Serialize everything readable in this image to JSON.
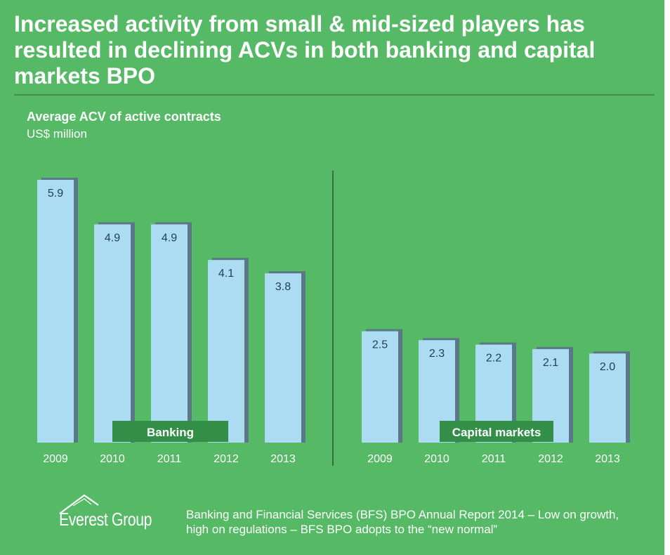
{
  "headline": "Increased activity from small & mid-sized players has resulted in declining ACVs in both banking and capital markets BPO",
  "chart_data": {
    "type": "bar",
    "title": "Average ACV of active contracts",
    "unit": "US$ million",
    "groups": [
      {
        "name": "Banking",
        "categories": [
          "2009",
          "2010",
          "2011",
          "2012",
          "2013"
        ],
        "values": [
          5.9,
          4.9,
          4.9,
          4.1,
          3.8
        ],
        "labels": [
          "5.9",
          "4.9",
          "4.9",
          "4.1",
          "3.8"
        ]
      },
      {
        "name": "Capital markets",
        "categories": [
          "2009",
          "2010",
          "2011",
          "2012",
          "2013"
        ],
        "values": [
          2.5,
          2.3,
          2.2,
          2.1,
          2.0
        ],
        "labels": [
          "2.5",
          "2.3",
          "2.2",
          "2.1",
          "2.0"
        ]
      }
    ],
    "ylim": [
      0,
      5.9
    ],
    "colors": {
      "bar": "#acdcf1",
      "bar_shadow": "#5b7888",
      "group_label_bg": "#338f47",
      "value_label": "#1f3f50",
      "divider": "#3a6d46"
    }
  },
  "footer": {
    "logo_text": "Everest Group",
    "report": "Banking and Financial Services (BFS) BPO Annual Report 2014 – Low on growth, high on regulations – BFS BPO adopts to the “new normal”"
  },
  "colors": {
    "background": "#55b966",
    "text": "#ffffff"
  }
}
